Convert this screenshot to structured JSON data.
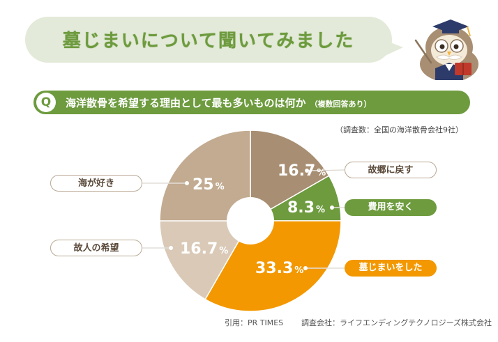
{
  "header": {
    "title": "墓じまいについて聞いてみました"
  },
  "question": {
    "badge": "Q",
    "text": "海洋散骨を希望する理由として最も多いものは何か",
    "note": "（複数回答あり）"
  },
  "survey_note": "（調査数：全国の海洋散骨会社9社）",
  "chart_data": {
    "type": "pie",
    "style": "donut",
    "slices": [
      {
        "label": "故郷に戻す",
        "value": 16.7,
        "value_text": "16.7",
        "unit": "%",
        "color": "#a88e72"
      },
      {
        "label": "費用を安く",
        "value": 8.3,
        "value_text": "8.3",
        "unit": "%",
        "color": "#6d9b3e"
      },
      {
        "label": "墓じまいをした",
        "value": 33.3,
        "value_text": "33.3",
        "unit": "%",
        "color": "#f39800"
      },
      {
        "label": "故人の希望",
        "value": 16.7,
        "value_text": "16.7",
        "unit": "%",
        "color": "#d9c9b6"
      },
      {
        "label": "海が好き",
        "value": 25,
        "value_text": "25",
        "unit": "%",
        "color": "#c2ab91"
      }
    ]
  },
  "footer": {
    "source": "引用：PR TIMES",
    "company": "調査会社：ライフエンディングテクノロジーズ株式会社"
  },
  "colors": {
    "accent_green": "#6d9b3e",
    "accent_orange": "#f39800",
    "bubble": "#e3ead9"
  },
  "icons": {
    "mascot": "owl-professor-icon"
  }
}
